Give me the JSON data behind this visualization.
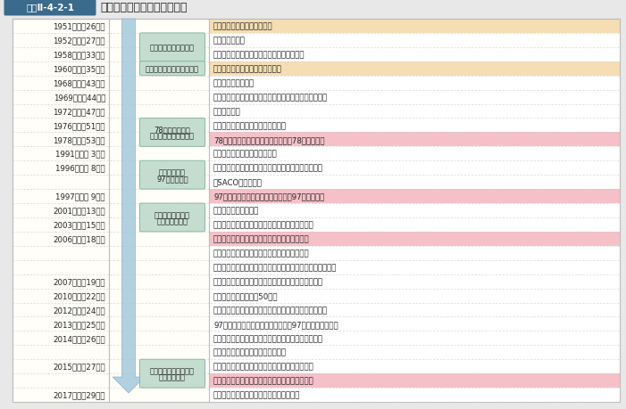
{
  "title_box": "図表Ⅱ-4-2-1",
  "title_text": "日米同盟にかかわる主な経緒",
  "rows": [
    {
      "year": "1951（昭和26）年",
      "event": "旧「日米安全保障条約」承認",
      "event_bg": "#f5deb3",
      "era_idx": -1
    },
    {
      "year": "1952（昭和27）年",
      "event": "「同条約」発効",
      "event_bg": "#ffffff",
      "era_idx": 0
    },
    {
      "year": "1958（昭和33）年",
      "event": "藤山・ダレス会談（日米安保条約改定同意）",
      "event_bg": "#ffffff",
      "era_idx": -1
    },
    {
      "year": "1960（昭和35）年",
      "event": "「日米安全保障条約」承認・発効",
      "event_bg": "#f5deb3",
      "era_idx": 1
    },
    {
      "year": "1968（昭和43）年",
      "event": "（小笠原諸島復帰）",
      "event_bg": "#ffffff",
      "era_idx": -1
    },
    {
      "year": "1969（昭和44）年",
      "event": "佐藤・ニクソン会談（安保条約継続、沖縄施政権返還）",
      "event_bg": "#ffffff",
      "era_idx": -1
    },
    {
      "year": "1972（昭和47）年",
      "event": "（沖縄復帰）",
      "event_bg": "#ffffff",
      "era_idx": -1
    },
    {
      "year": "1976（昭和51）年",
      "event": "（日米防衛協力小委員会設置合意）",
      "event_bg": "#ffffff",
      "era_idx": 2
    },
    {
      "year": "1978（昭和53）年",
      "event": "78「日米防衛協力のための指針」（78指針）策定",
      "event_bg": "#f5c0c8",
      "era_idx": -1
    },
    {
      "year": "1991（平成 3）年",
      "event": "（旧ソ連の崩壊、冷戦の終結）",
      "event_bg": "#ffffff",
      "era_idx": -1
    },
    {
      "year": "1996（平成 8）年",
      "event": "「日米安全保障共同宣言」（橋本・クリントン会談）",
      "event_bg": "#ffffff",
      "era_idx": 3
    },
    {
      "year": "",
      "event": "「SACO最終報告」",
      "event_bg": "#ffffff",
      "era_idx": -2
    },
    {
      "year": "1997（平成 9）年",
      "event": "97「日米防衛協力のための指針」（97指針）策定",
      "event_bg": "#f5c0c8",
      "era_idx": -1
    },
    {
      "year": "2001（平成13）年",
      "event": "（米国同時多発テロ）",
      "event_bg": "#ffffff",
      "era_idx": 4
    },
    {
      "year": "2003（平成15）年",
      "event": "「世界の中の日米同盟」（小泉・ブッシュ会談）",
      "event_bg": "#ffffff",
      "era_idx": -1
    },
    {
      "year": "2006（平成18）年",
      "event": "「再編の実施のための日米ロードマップ」策定",
      "event_bg": "#f5c0c8",
      "era_idx": -1
    },
    {
      "year": "",
      "event": "「新世紀の日米同盟」（小泉・ブッシュ会談）",
      "event_bg": "#ffffff",
      "era_idx": -2
    },
    {
      "year": "",
      "event": "「世界とアジアのための日米同盟」（安倍・ブッシュ会談）",
      "event_bg": "#ffffff",
      "era_idx": -2
    },
    {
      "year": "2007（平成19）年",
      "event": "「かけがえのない日米同盟」（安倍・ブッシュ会談）",
      "event_bg": "#ffffff",
      "era_idx": -1
    },
    {
      "year": "2010（平成22）年",
      "event": "日米安全保障条約締結50周年",
      "event_bg": "#ffffff",
      "era_idx": -1
    },
    {
      "year": "2012（平成24）年",
      "event": "「未来に向けた共通のビジョン」（野田・オバマ会談）",
      "event_bg": "#ffffff",
      "era_idx": -1
    },
    {
      "year": "2013（平成25）年",
      "event": "97「日米防衛協力のための指針」（97指針）見直し合意",
      "event_bg": "#ffffff",
      "era_idx": -1
    },
    {
      "year": "2014（平成26）年",
      "event": "「アジア太平洋及びこれを越えた地域の未来を形作る",
      "event_bg": "#ffffff",
      "era_idx": -1
    },
    {
      "year": "",
      "event": "日本と米国」（安倍・オバマ会談）",
      "event_bg": "#ffffff",
      "era_idx": -2
    },
    {
      "year": "2015（平成27）年",
      "event": "「日米共同ビジョン声明」（安倍・オバマ会談）",
      "event_bg": "#ffffff",
      "era_idx": 5
    },
    {
      "year": "",
      "event": "新「日米防衛協力のための指針」（新指針）策定",
      "event_bg": "#f5c0c8",
      "era_idx": -2
    },
    {
      "year": "2017（平成29）年",
      "event": "「日米共同声明」（安倍・トランプ会談）",
      "event_bg": "#ffffff",
      "era_idx": -1
    }
  ],
  "era_labels": [
    "旧日米安保条約の時代",
    "安保改定と新日米安保条約",
    "78指針の策定と\n拡大する日米防衛協力",
    "冷戦の終結と\n97指針の策定",
    "米国同時多発テロ\n以降の日米関係",
    "新たな安全保障環境と\n新指針の策定"
  ],
  "era_row_ranges": [
    [
      1,
      2
    ],
    [
      3,
      3
    ],
    [
      7,
      8
    ],
    [
      10,
      11
    ],
    [
      13,
      14
    ],
    [
      24,
      25
    ]
  ],
  "bg_outer": "#e8e8e8",
  "bg_table": "#fffef8",
  "era_box_color": "#c5ddd0",
  "era_box_border": "#8ab8a0",
  "arrow_fill": "#aaccdd",
  "arrow_border": "#88aacc",
  "col_sep_color": "#bbbbbb",
  "row_sep_color": "#cccccc",
  "highlight_amber": "#f5deb3",
  "highlight_pink": "#f5c0c8",
  "text_dark": "#222222",
  "title_badge_bg": "#3a6a8c",
  "title_badge_fg": "#ffffff"
}
